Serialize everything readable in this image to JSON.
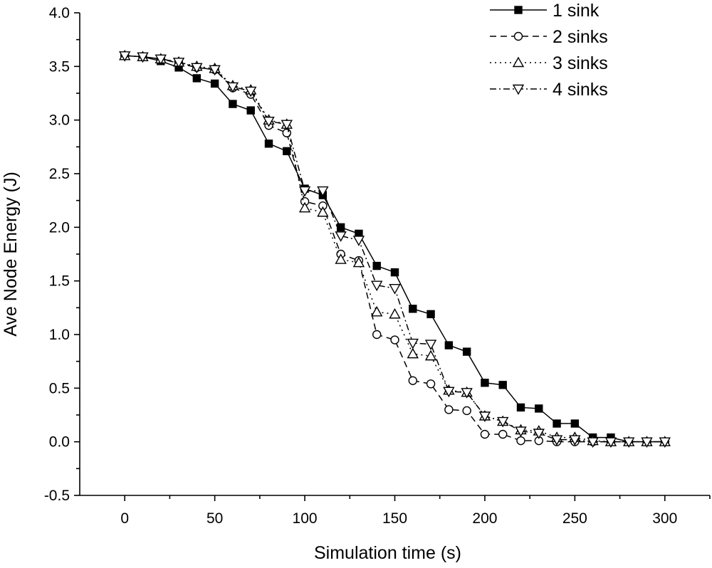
{
  "chart_data": {
    "type": "line",
    "title": "",
    "xlabel": "Simulation time (s)",
    "ylabel": "Ave Node Energy (J)",
    "xlim": [
      -25,
      325
    ],
    "ylim": [
      -0.5,
      4.0
    ],
    "xticks": [
      0,
      50,
      100,
      150,
      200,
      250,
      300
    ],
    "xtick_labels": [
      "0",
      "50",
      "100",
      "150",
      "200",
      "250",
      "300"
    ],
    "yticks": [
      -0.5,
      0.0,
      0.5,
      1.0,
      1.5,
      2.0,
      2.5,
      3.0,
      3.5,
      4.0
    ],
    "ytick_labels": [
      "-0.5",
      "0.0",
      "0.5",
      "1.0",
      "1.5",
      "2.0",
      "2.5",
      "3.0",
      "3.5",
      "4.0"
    ],
    "grid": false,
    "legend_position": "top-right",
    "x": [
      0,
      10,
      20,
      30,
      40,
      50,
      60,
      70,
      80,
      90,
      100,
      110,
      120,
      130,
      140,
      150,
      160,
      170,
      180,
      190,
      200,
      210,
      220,
      230,
      240,
      250,
      260,
      270,
      280,
      290,
      300
    ],
    "series": [
      {
        "name": "1 sink",
        "marker": "filled-square",
        "dash": "solid",
        "values": [
          3.6,
          3.59,
          3.55,
          3.49,
          3.39,
          3.34,
          3.15,
          3.09,
          2.78,
          2.71,
          2.36,
          2.3,
          2.0,
          1.94,
          1.64,
          1.58,
          1.24,
          1.19,
          0.9,
          0.84,
          0.55,
          0.53,
          0.32,
          0.31,
          0.17,
          0.17,
          0.04,
          0.04,
          0.0,
          0.0,
          0.0
        ]
      },
      {
        "name": "2 sinks",
        "marker": "open-circle",
        "dash": "dash",
        "values": [
          3.6,
          3.59,
          3.57,
          3.53,
          3.49,
          3.47,
          3.3,
          3.24,
          2.95,
          2.88,
          2.24,
          2.2,
          1.75,
          1.69,
          1.0,
          0.95,
          0.57,
          0.54,
          0.3,
          0.29,
          0.07,
          0.07,
          0.01,
          0.01,
          0.0,
          0.0,
          0.0,
          0.0,
          0.0,
          0.0,
          0.0
        ]
      },
      {
        "name": "3 sinks",
        "marker": "open-triangle-up",
        "dash": "dot",
        "values": [
          3.6,
          3.59,
          3.57,
          3.54,
          3.5,
          3.48,
          3.32,
          3.28,
          3.0,
          2.96,
          2.18,
          2.14,
          1.7,
          1.67,
          1.21,
          1.19,
          0.82,
          0.8,
          0.48,
          0.46,
          0.24,
          0.19,
          0.11,
          0.1,
          0.04,
          0.04,
          0.01,
          0.0,
          0.0,
          0.0,
          0.0
        ]
      },
      {
        "name": "4 sinks",
        "marker": "open-triangle-down",
        "dash": "dash-dot",
        "values": [
          3.6,
          3.59,
          3.57,
          3.54,
          3.49,
          3.47,
          3.31,
          3.27,
          2.99,
          2.96,
          2.34,
          2.34,
          1.92,
          1.88,
          1.46,
          1.43,
          0.92,
          0.91,
          0.47,
          0.46,
          0.24,
          0.19,
          0.1,
          0.08,
          0.02,
          0.02,
          0.0,
          0.0,
          0.0,
          0.0,
          0.0
        ]
      }
    ]
  }
}
